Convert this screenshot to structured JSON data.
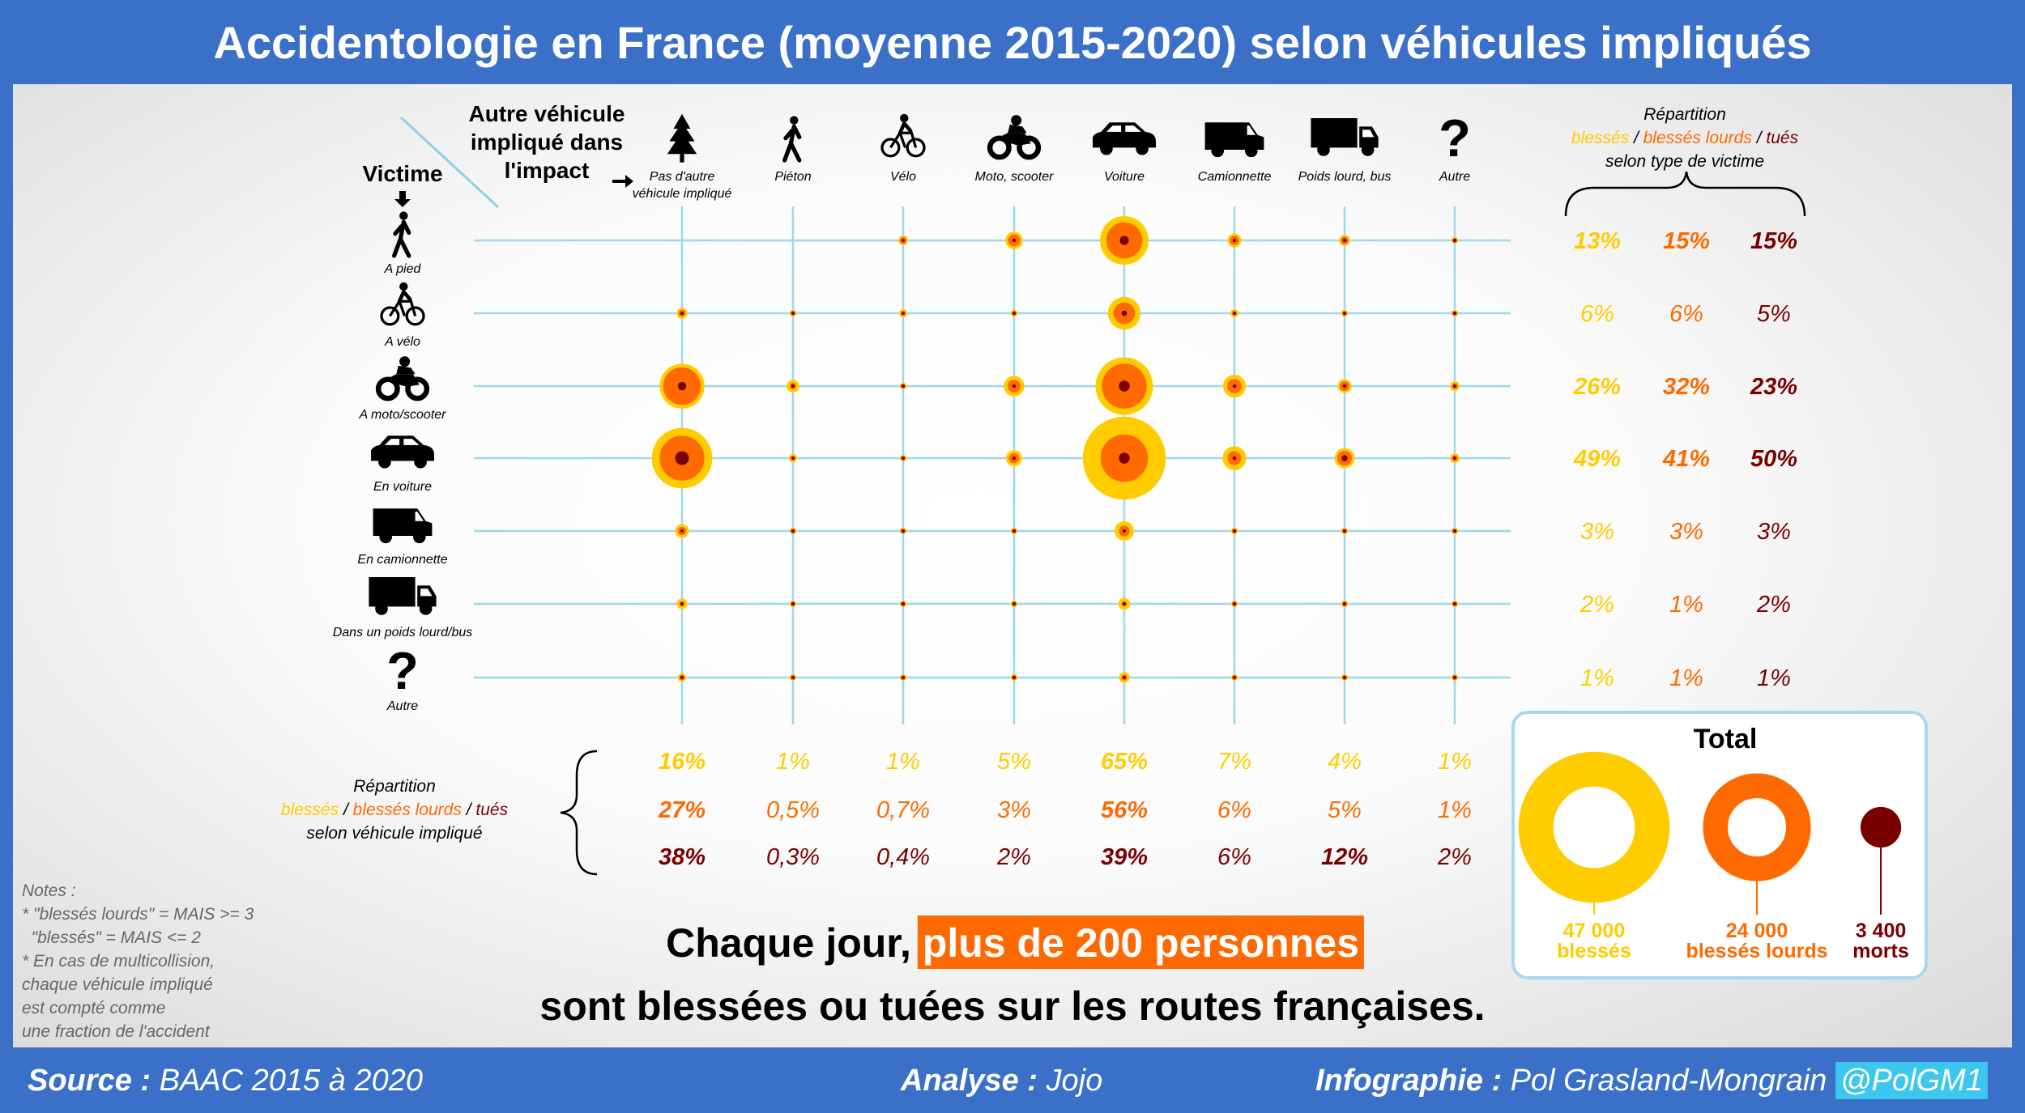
{
  "title": "Accidentologie en France (moyenne 2015-2020) selon véhicules impliqués",
  "header": {
    "other_vehicle_label": [
      "Autre véhicule",
      "impliqué dans",
      "l'impact"
    ],
    "victim_label": "Victime"
  },
  "columns": [
    {
      "label": "Pas d'autre véhicule impliqué",
      "lines": [
        "Pas d'autre",
        "véhicule impliqué"
      ],
      "icon": "tree-icon"
    },
    {
      "label": "Piéton",
      "lines": [
        "Piéton"
      ],
      "icon": "pedestrian-icon"
    },
    {
      "label": "Vélo",
      "lines": [
        "Vélo"
      ],
      "icon": "bicycle-icon"
    },
    {
      "label": "Moto, scooter",
      "lines": [
        "Moto, scooter"
      ],
      "icon": "motorcycle-icon"
    },
    {
      "label": "Voiture",
      "lines": [
        "Voiture"
      ],
      "icon": "car-icon"
    },
    {
      "label": "Camionnette",
      "lines": [
        "Camionnette"
      ],
      "icon": "van-icon"
    },
    {
      "label": "Poids lourd, bus",
      "lines": [
        "Poids lourd, bus"
      ],
      "icon": "truck-icon"
    },
    {
      "label": "Autre",
      "lines": [
        "Autre"
      ],
      "icon": "question-icon"
    }
  ],
  "rows": [
    {
      "label": "A pied",
      "icon": "pedestrian-icon"
    },
    {
      "label": "A vélo",
      "icon": "bicycle-icon"
    },
    {
      "label": "A moto/scooter",
      "icon": "motorcycle-icon"
    },
    {
      "label": "En voiture",
      "icon": "car-icon"
    },
    {
      "label": "En camionnette",
      "icon": "van-icon"
    },
    {
      "label": "Dans un poids lourd/bus",
      "icon": "truck-icon"
    },
    {
      "label": "Autre",
      "icon": "question-icon"
    }
  ],
  "colors": {
    "blesses": "#ffcc00",
    "blesses_lourds": "#ff6a00",
    "tues": "#7a0000",
    "grid": "#9ed8ec",
    "header_bg": "#3a70c8",
    "highlight": "#ff6a00"
  },
  "legend": {
    "heading": "Répartition",
    "blesses": "blessés",
    "sep": " / ",
    "blesses_lourds": "blessés lourds",
    "tues": "tués",
    "right_sub": "selon type de victime",
    "bottom_sub": "selon véhicule impliqué"
  },
  "chart_data": {
    "type": "bubble-matrix",
    "x_categories": [
      "Pas d'autre véhicule impliqué",
      "Piéton",
      "Vélo",
      "Moto, scooter",
      "Voiture",
      "Camionnette",
      "Poids lourd, bus",
      "Autre"
    ],
    "y_categories": [
      "A pied",
      "A vélo",
      "A moto/scooter",
      "En voiture",
      "En camionnette",
      "Dans un poids lourd/bus",
      "Autre"
    ],
    "series": [
      {
        "name": "blessés",
        "color": "#ffcc00",
        "values": [
          [
            0,
            0,
            0.4,
            1.3,
            10,
            0.8,
            0.5,
            0.2
          ],
          [
            0.5,
            0.1,
            0.3,
            0.2,
            4.5,
            0.3,
            0.2,
            0.05
          ],
          [
            8.5,
            0.7,
            0.2,
            1.8,
            14,
            2.2,
            0.8,
            0.4
          ],
          [
            15.5,
            0.3,
            0.1,
            1.1,
            29,
            2.4,
            1.7,
            0.4
          ],
          [
            0.8,
            0.05,
            0.02,
            0.1,
            1.6,
            0.2,
            0.1,
            0.05
          ],
          [
            0.5,
            0.02,
            0.02,
            0.05,
            0.6,
            0.1,
            0.2,
            0.02
          ],
          [
            0.3,
            0.02,
            0.01,
            0.05,
            0.5,
            0.05,
            0.05,
            0.02
          ]
        ]
      },
      {
        "name": "blessés lourds",
        "color": "#ff6a00",
        "values": [
          [
            0,
            0,
            0.2,
            0.6,
            5.5,
            0.35,
            0.25,
            0.07
          ],
          [
            0.2,
            0.05,
            0.1,
            0.1,
            2,
            0.1,
            0.1,
            0.02
          ],
          [
            6,
            0.2,
            0.06,
            0.7,
            8.5,
            0.9,
            0.4,
            0.15
          ],
          [
            8.5,
            0.1,
            0.04,
            0.45,
            9.5,
            0.8,
            0.9,
            0.15
          ],
          [
            0.3,
            0.02,
            0.01,
            0.04,
            0.5,
            0.07,
            0.05,
            0.02
          ],
          [
            0.12,
            0.01,
            0.005,
            0.02,
            0.12,
            0.03,
            0.07,
            0.01
          ],
          [
            0.12,
            0.01,
            0.005,
            0.02,
            0.15,
            0.02,
            0.02,
            0.01
          ]
        ]
      },
      {
        "name": "tués",
        "color": "#7a0000",
        "values": [
          [
            0,
            0,
            0.03,
            0.05,
            0.35,
            0.05,
            0.06,
            0.01
          ],
          [
            0.05,
            0.005,
            0.005,
            0.01,
            0.12,
            0.01,
            0.02,
            0.002
          ],
          [
            0.3,
            0.01,
            0.004,
            0.05,
            0.5,
            0.06,
            0.06,
            0.01
          ],
          [
            0.8,
            0.005,
            0.003,
            0.02,
            0.5,
            0.06,
            0.15,
            0.01
          ],
          [
            0.03,
            0.002,
            0.001,
            0.003,
            0.04,
            0.006,
            0.01,
            0.002
          ],
          [
            0.02,
            0.001,
            0.001,
            0.001,
            0.01,
            0.003,
            0.01,
            0.001
          ],
          [
            0.02,
            0.001,
            0.001,
            0.001,
            0.01,
            0.002,
            0.003,
            0.001
          ]
        ]
      }
    ],
    "row_share": {
      "blessés": [
        "13%",
        "6%",
        "26%",
        "49%",
        "3%",
        "2%",
        "1%"
      ],
      "blessés lourds": [
        "15%",
        "6%",
        "32%",
        "41%",
        "3%",
        "1%",
        "1%"
      ],
      "tués": [
        "15%",
        "5%",
        "23%",
        "50%",
        "3%",
        "2%",
        "1%"
      ]
    },
    "row_share_bold": [
      true,
      false,
      true,
      true,
      false,
      false,
      false
    ],
    "col_share": {
      "blessés": [
        "16%",
        "1%",
        "1%",
        "5%",
        "65%",
        "7%",
        "4%",
        "1%"
      ],
      "blessés lourds": [
        "27%",
        "0,5%",
        "0,7%",
        "3%",
        "56%",
        "6%",
        "5%",
        "1%"
      ],
      "tués": [
        "38%",
        "0,3%",
        "0,4%",
        "2%",
        "39%",
        "6%",
        "12%",
        "2%"
      ]
    },
    "col_share_bold": {
      "blessés": [
        true,
        false,
        false,
        false,
        true,
        false,
        false,
        false
      ],
      "blessés lourds": [
        true,
        false,
        false,
        false,
        true,
        false,
        false,
        false
      ],
      "tués": [
        true,
        false,
        false,
        false,
        true,
        false,
        true,
        false
      ]
    },
    "totals": [
      {
        "label": "blessés",
        "value": 47000,
        "text": "47 000",
        "color": "#ffcc00"
      },
      {
        "label": "blessés lourds",
        "value": 24000,
        "text": "24 000",
        "color": "#ff6a00"
      },
      {
        "label": "morts",
        "value": 3400,
        "text": "3 400",
        "color": "#7a0000"
      }
    ]
  },
  "total_box": {
    "title": "Total"
  },
  "notes": {
    "lines": [
      "Notes :",
      "* \"blessés lourds\" = MAIS >= 3",
      "  \"blessés\" = MAIS <= 2",
      "* En cas de multicollision,",
      "chaque véhicule impliqué",
      "est compté comme",
      "une fraction de l'accident"
    ]
  },
  "headline": {
    "part1": "Chaque jour, ",
    "highlight": "plus de 200 personnes",
    "line2": "sont blessées ou tuées sur les routes françaises."
  },
  "footer": {
    "source_label": "Source :",
    "source": "BAAC 2015 à 2020",
    "analysis_label": "Analyse :",
    "analysis": "Jojo",
    "infographic_label": "Infographie :",
    "infographic": "Pol Grasland-Mongrain",
    "handle": "@PolGM1"
  }
}
